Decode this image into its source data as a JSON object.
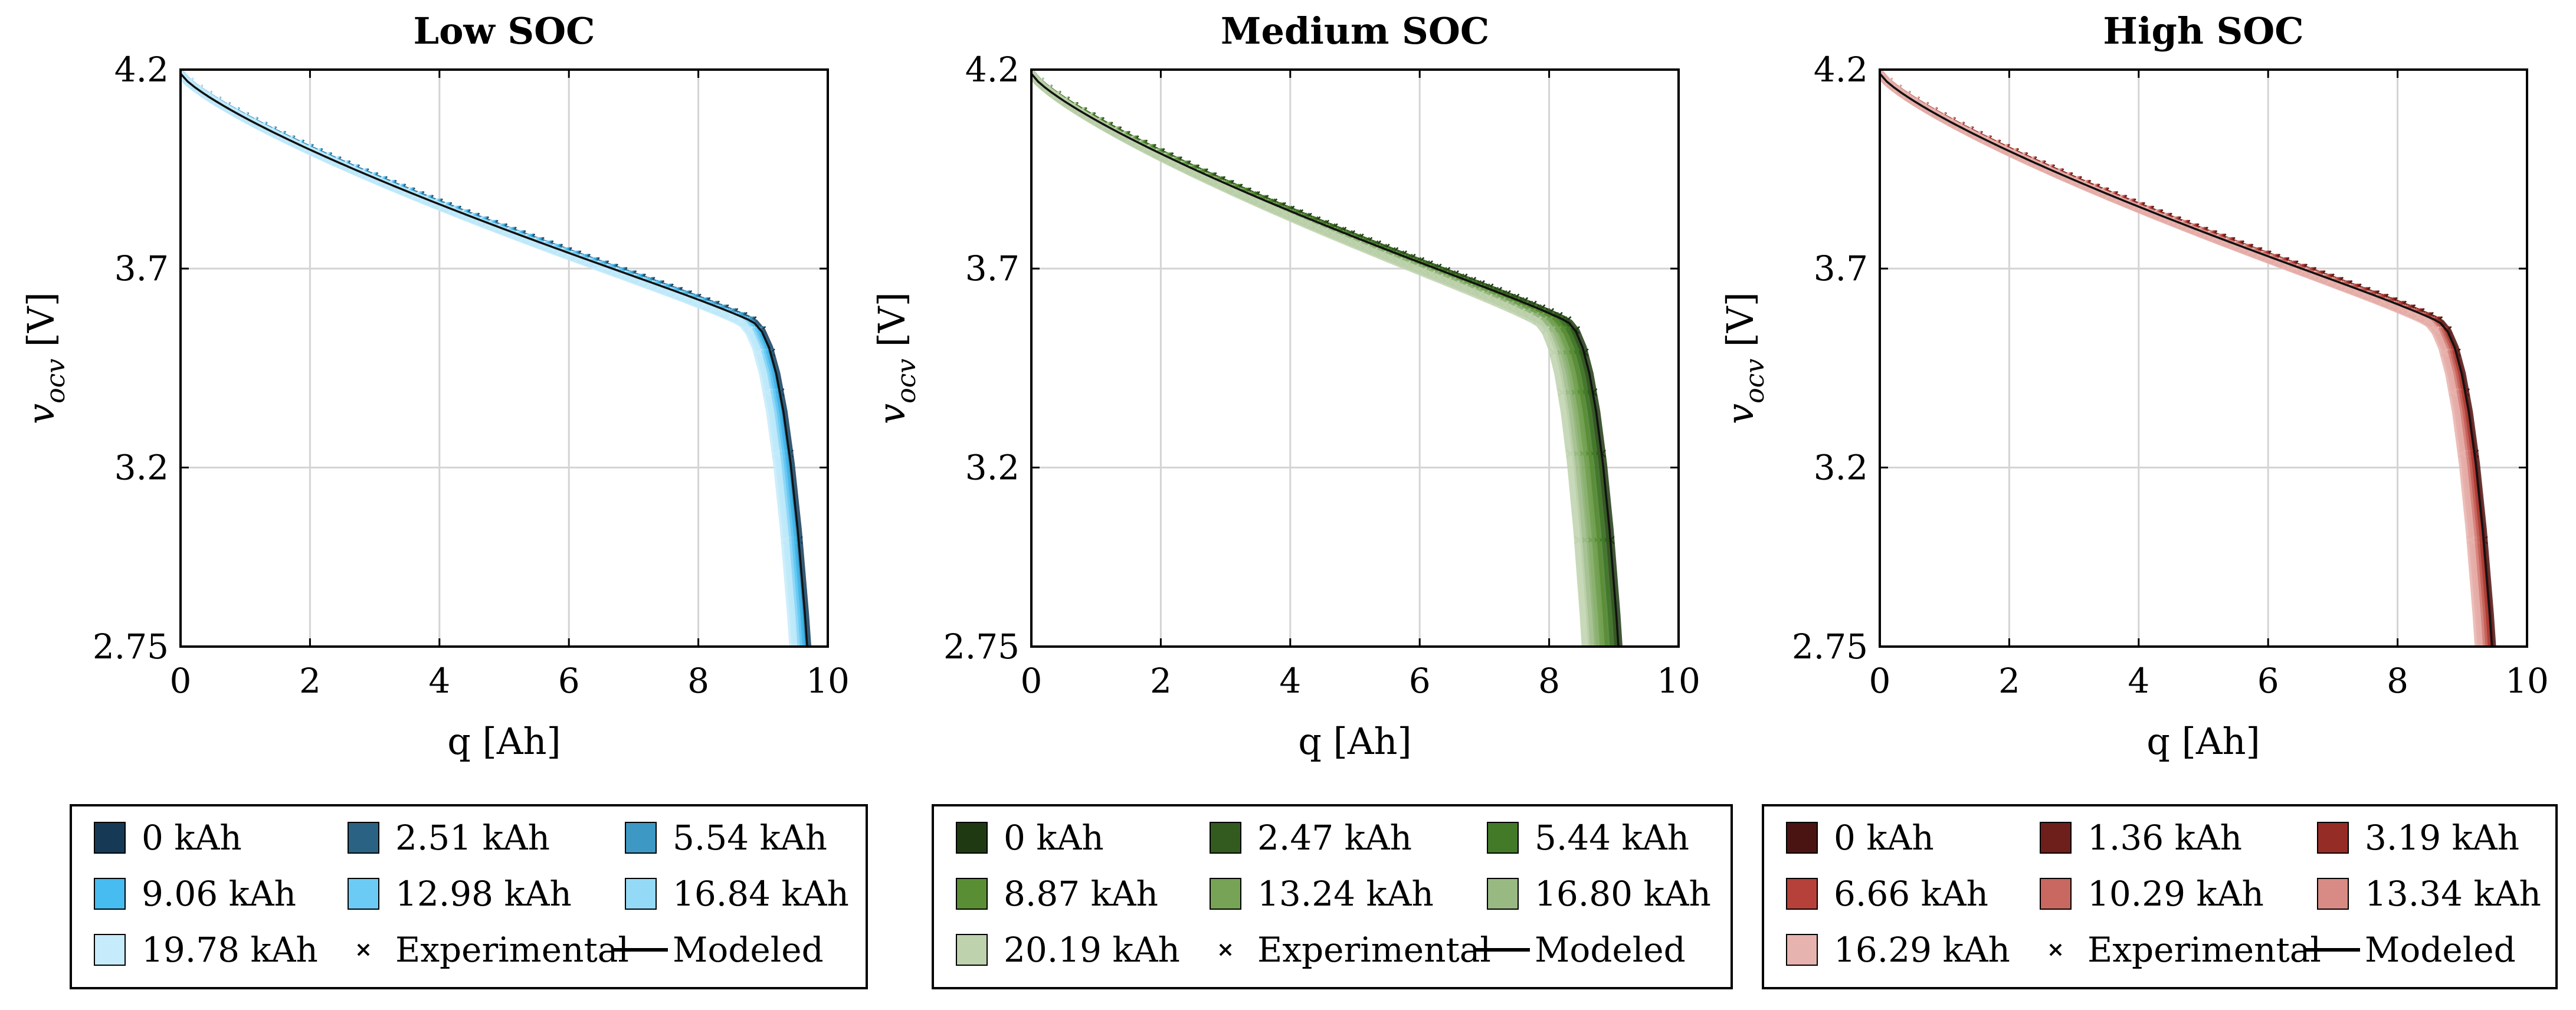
{
  "chart_data": [
    {
      "type": "line",
      "title": "Low SOC",
      "xlabel": "q [Ah]",
      "ylabel": "v_ocv [V]",
      "ylabel_main": "v",
      "ylabel_sub": "ocv",
      "ylabel_unit": " [V]",
      "xlim": [
        0,
        10
      ],
      "ylim": [
        2.75,
        4.2
      ],
      "xticks": [
        0,
        2,
        4,
        6,
        8,
        10
      ],
      "yticks": [
        2.75,
        3.2,
        3.7,
        4.2
      ],
      "xtick_labels": [
        "0",
        "2",
        "4",
        "6",
        "8",
        "10"
      ],
      "ytick_labels": [
        "2.75",
        "3.2",
        "3.7",
        "4.2"
      ],
      "grid": true,
      "legend_position": "below",
      "series": [
        {
          "name": "0 kAh",
          "color": "#163a56",
          "qmax": 9.98
        },
        {
          "name": "2.51 kAh",
          "color": "#2a6283",
          "qmax": 9.95
        },
        {
          "name": "5.54 kAh",
          "color": "#3d98c4",
          "qmax": 9.92
        },
        {
          "name": "9.06 kAh",
          "color": "#46bcf0",
          "qmax": 9.88
        },
        {
          "name": "12.98 kAh",
          "color": "#6ccbf4",
          "qmax": 9.84
        },
        {
          "name": "16.84 kAh",
          "color": "#94daf7",
          "qmax": 9.8
        },
        {
          "name": "19.78 kAh",
          "color": "#c6ebfa",
          "qmax": 9.76
        }
      ],
      "legend_extra": {
        "experimental": "Experimental",
        "modeled": "Modeled"
      }
    },
    {
      "type": "line",
      "title": "Medium SOC",
      "xlabel": "q [Ah]",
      "ylabel": "v_ocv [V]",
      "ylabel_main": "v",
      "ylabel_sub": "ocv",
      "ylabel_unit": " [V]",
      "xlim": [
        0,
        10
      ],
      "ylim": [
        2.75,
        4.2
      ],
      "xticks": [
        0,
        2,
        4,
        6,
        8,
        10
      ],
      "yticks": [
        2.75,
        3.2,
        3.7,
        4.2
      ],
      "xtick_labels": [
        "0",
        "2",
        "4",
        "6",
        "8",
        "10"
      ],
      "ytick_labels": [
        "2.75",
        "3.2",
        "3.7",
        "4.2"
      ],
      "grid": true,
      "legend_position": "below",
      "series": [
        {
          "name": "0 kAh",
          "color": "#1f3a12",
          "qmax": 9.35
        },
        {
          "name": "2.47 kAh",
          "color": "#335a1f",
          "qmax": 9.28
        },
        {
          "name": "5.44 kAh",
          "color": "#427a28",
          "qmax": 9.2
        },
        {
          "name": "8.87 kAh",
          "color": "#5a8e35",
          "qmax": 9.12
        },
        {
          "name": "13.24 kAh",
          "color": "#76a356",
          "qmax": 9.03
        },
        {
          "name": "16.80 kAh",
          "color": "#98b982",
          "qmax": 8.93
        },
        {
          "name": "20.19 kAh",
          "color": "#bed2ae",
          "qmax": 8.83
        }
      ],
      "legend_extra": {
        "experimental": "Experimental",
        "modeled": "Modeled"
      }
    },
    {
      "type": "line",
      "title": "High SOC",
      "xlabel": "q [Ah]",
      "ylabel": "v_ocv [V]",
      "ylabel_main": "v",
      "ylabel_sub": "ocv",
      "ylabel_unit": " [V]",
      "xlim": [
        0,
        10
      ],
      "ylim": [
        2.75,
        4.2
      ],
      "xticks": [
        0,
        2,
        4,
        6,
        8,
        10
      ],
      "yticks": [
        2.75,
        3.2,
        3.7,
        4.2
      ],
      "xtick_labels": [
        "0",
        "2",
        "4",
        "6",
        "8",
        "10"
      ],
      "ytick_labels": [
        "2.75",
        "3.2",
        "3.7",
        "4.2"
      ],
      "grid": true,
      "legend_position": "below",
      "series": [
        {
          "name": "0 kAh",
          "color": "#4a1412",
          "qmax": 9.75
        },
        {
          "name": "1.36 kAh",
          "color": "#6e1f1c",
          "qmax": 9.72
        },
        {
          "name": "3.19 kAh",
          "color": "#962c26",
          "qmax": 9.69
        },
        {
          "name": "6.66 kAh",
          "color": "#b5413a",
          "qmax": 9.66
        },
        {
          "name": "10.29 kAh",
          "color": "#c86860",
          "qmax": 9.62
        },
        {
          "name": "13.34 kAh",
          "color": "#d88a84",
          "qmax": 9.58
        },
        {
          "name": "16.29 kAh",
          "color": "#e7b3ae",
          "qmax": 9.54
        }
      ],
      "legend_extra": {
        "experimental": "Experimental",
        "modeled": "Modeled"
      }
    }
  ]
}
